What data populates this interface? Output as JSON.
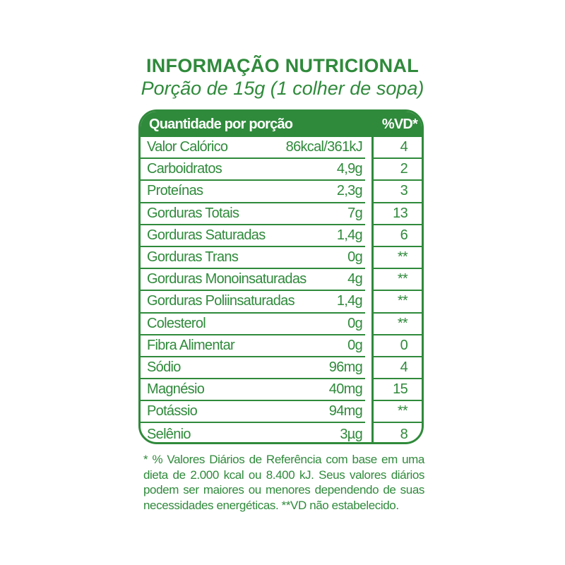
{
  "title": "INFORMAÇÃO NUTRICIONAL",
  "subtitle": "Porção de 15g (1 colher de sopa)",
  "table": {
    "header_left": "Quantidade por porção",
    "header_right": "%VD*",
    "rows": [
      {
        "name": "Valor Calórico",
        "value": "86kcal/361kJ",
        "vd": "4"
      },
      {
        "name": "Carboidratos",
        "value": "4,9g",
        "vd": "2"
      },
      {
        "name": "Proteínas",
        "value": "2,3g",
        "vd": "3"
      },
      {
        "name": "Gorduras Totais",
        "value": "7g",
        "vd": "13"
      },
      {
        "name": "Gorduras Saturadas",
        "value": "1,4g",
        "vd": "6"
      },
      {
        "name": "Gorduras Trans",
        "value": "0g",
        "vd": "**"
      },
      {
        "name": "Gorduras Monoinsaturadas",
        "value": "4g",
        "vd": "**"
      },
      {
        "name": "Gorduras Poliinsaturadas",
        "value": "1,4g",
        "vd": "**"
      },
      {
        "name": "Colesterol",
        "value": "0g",
        "vd": "**"
      },
      {
        "name": "Fibra Alimentar",
        "value": "0g",
        "vd": "0"
      },
      {
        "name": "Sódio",
        "value": "96mg",
        "vd": "4"
      },
      {
        "name": "Magnésio",
        "value": "40mg",
        "vd": "15"
      },
      {
        "name": "Potássio",
        "value": "94mg",
        "vd": "**"
      },
      {
        "name": "Selênio",
        "value": "3µg",
        "vd": "8"
      }
    ]
  },
  "footnote": {
    "line1": "* % Valores Diários de Referência com base em uma dieta de 2.000 kcal ou 8.400 kJ. Seus valores diários podem ser maiores ou menores dependendo de suas",
    "line2": "necessidades energéticas. **VD não estabelecido."
  },
  "colors": {
    "brand_green": "#2f8a3b"
  }
}
